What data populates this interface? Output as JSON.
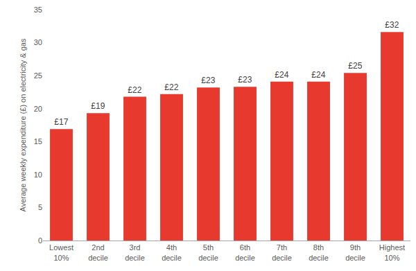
{
  "chart_data": {
    "type": "bar",
    "y_label": "Average weekly expenditure (£) on electricity & gas",
    "categories": [
      "Lowest 10%",
      "2nd decile",
      "3rd decile",
      "4th decile",
      "5th decile",
      "6th decile",
      "7th decile",
      "8th decile",
      "9th decile",
      "Highest 10%"
    ],
    "values": [
      16.9,
      19.3,
      21.8,
      22.2,
      23.2,
      23.3,
      24.1,
      24.1,
      25.4,
      31.6
    ],
    "value_labels": [
      "£17",
      "£19",
      "£22",
      "£22",
      "£23",
      "£23",
      "£24",
      "£24",
      "£25",
      "£32"
    ],
    "data_labels": true,
    "color": "#e8392f",
    "ylim": [
      0,
      35
    ],
    "yticks": [
      0,
      5,
      10,
      15,
      20,
      25,
      30,
      35
    ],
    "grid": false
  }
}
